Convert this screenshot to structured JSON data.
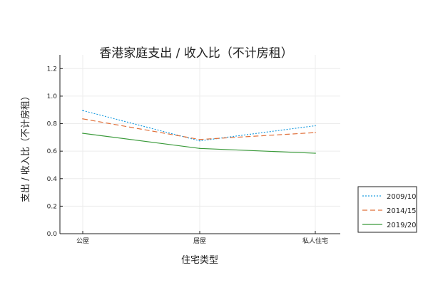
{
  "chart_data": {
    "type": "line",
    "title": "香港家庭支出 / 收入比（不计房租）",
    "xlabel": "住宅类型",
    "ylabel": "支出 / 收入比（不计房租）",
    "categories": [
      "公屋",
      "居屋",
      "私人住宅"
    ],
    "ylim": [
      0,
      1.3
    ],
    "yticks": [
      0.0,
      0.2,
      0.4,
      0.6,
      0.8,
      1.0,
      1.2
    ],
    "ytick_labels": [
      "0.0",
      "0.2",
      "0.4",
      "0.6",
      "0.8",
      "1.0",
      "1.2"
    ],
    "grid": true,
    "legend_position": "bottom-right-outside",
    "series": [
      {
        "name": "2009/10",
        "values": [
          0.895,
          0.675,
          0.785
        ],
        "color": "#1f9ee0",
        "style": "dotted"
      },
      {
        "name": "2014/15",
        "values": [
          0.835,
          0.685,
          0.735
        ],
        "color": "#e0703a",
        "style": "dashed"
      },
      {
        "name": "2019/20",
        "values": [
          0.73,
          0.62,
          0.585
        ],
        "color": "#3a9a3a",
        "style": "solid"
      }
    ]
  }
}
